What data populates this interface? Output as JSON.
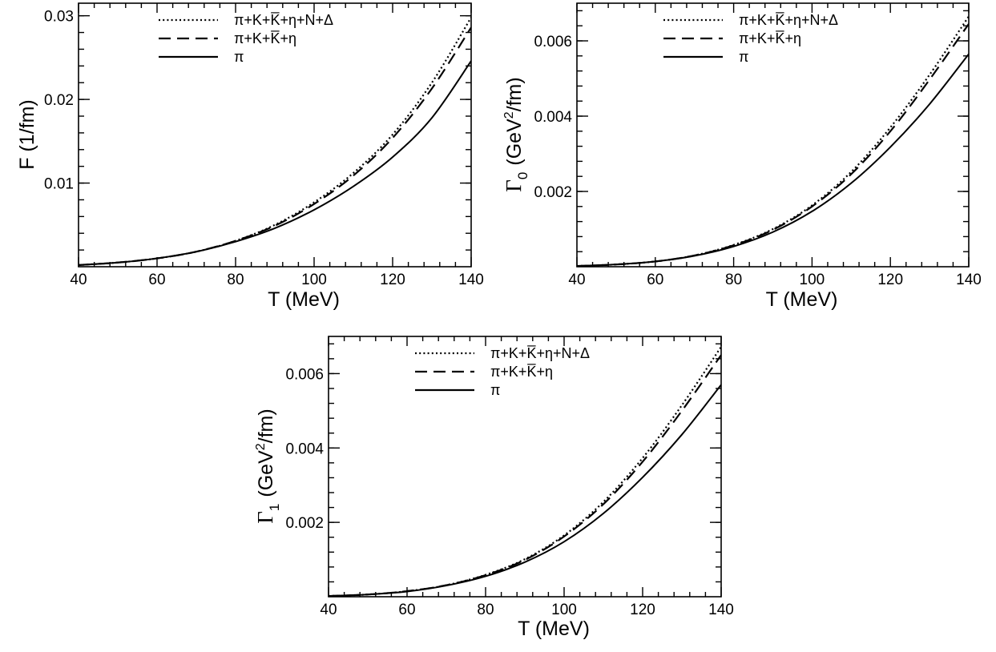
{
  "chart_data": [
    {
      "type": "line",
      "panel": "top-left",
      "xlabel": "T (MeV)",
      "ylabel": "F (1/fm)",
      "xlim": [
        40,
        140
      ],
      "ylim": [
        0,
        0.0315
      ],
      "xticks": [
        40,
        60,
        80,
        100,
        120,
        140
      ],
      "xtick_labels": [
        "40",
        "60",
        "80",
        "100",
        "120",
        "140"
      ],
      "yticks": [
        0.01,
        0.02,
        0.03
      ],
      "ytick_labels": [
        "0.01",
        "0.02",
        "0.03"
      ],
      "legend_position": "top-center",
      "series": [
        {
          "name": "π+K+K̅+η+N+Δ",
          "style": "dotted",
          "x": [
            40,
            50,
            60,
            70,
            80,
            90,
            100,
            110,
            120,
            130,
            140
          ],
          "y": [
            0.0002,
            0.0005,
            0.001,
            0.0018,
            0.0031,
            0.005,
            0.0077,
            0.0112,
            0.0158,
            0.022,
            0.0298
          ]
        },
        {
          "name": "π+K+K̅+η",
          "style": "dashed",
          "x": [
            40,
            50,
            60,
            70,
            80,
            90,
            100,
            110,
            120,
            130,
            140
          ],
          "y": [
            0.0002,
            0.0005,
            0.001,
            0.0018,
            0.0031,
            0.0049,
            0.0075,
            0.0109,
            0.0154,
            0.0213,
            0.0286
          ]
        },
        {
          "name": "π",
          "style": "solid",
          "x": [
            40,
            50,
            60,
            70,
            80,
            90,
            100,
            110,
            120,
            130,
            140
          ],
          "y": [
            0.0002,
            0.0005,
            0.001,
            0.0018,
            0.003,
            0.0046,
            0.0068,
            0.0096,
            0.0131,
            0.0178,
            0.0246
          ]
        }
      ]
    },
    {
      "type": "line",
      "panel": "top-right",
      "xlabel": "T (MeV)",
      "ylabel_symbol": "Γ",
      "ylabel_subscript": "0",
      "ylabel_unit_pre": "(GeV",
      "ylabel_unit_sup": "2",
      "ylabel_unit_post": "/fm)",
      "xlim": [
        40,
        140
      ],
      "ylim": [
        0,
        0.007
      ],
      "xticks": [
        40,
        60,
        80,
        100,
        120,
        140
      ],
      "xtick_labels": [
        "40",
        "60",
        "80",
        "100",
        "120",
        "140"
      ],
      "yticks": [
        0.002,
        0.004,
        0.006
      ],
      "ytick_labels": [
        "0.002",
        "0.004",
        "0.006"
      ],
      "legend_position": "top-center",
      "series": [
        {
          "name": "π+K+K̅+η+N+Δ",
          "style": "dotted",
          "x": [
            40,
            50,
            60,
            70,
            80,
            90,
            100,
            110,
            120,
            130,
            140
          ],
          "y": [
            2e-05,
            6e-05,
            0.00014,
            0.0003,
            0.00058,
            0.001,
            0.00163,
            0.00252,
            0.0037,
            0.0051,
            0.00665
          ]
        },
        {
          "name": "π+K+K̅+η",
          "style": "dashed",
          "x": [
            40,
            50,
            60,
            70,
            80,
            90,
            100,
            110,
            120,
            130,
            140
          ],
          "y": [
            2e-05,
            6e-05,
            0.00014,
            0.0003,
            0.00057,
            0.00098,
            0.0016,
            0.00246,
            0.0036,
            0.00497,
            0.00645
          ]
        },
        {
          "name": "π",
          "style": "solid",
          "x": [
            40,
            50,
            60,
            70,
            80,
            90,
            100,
            110,
            120,
            130,
            140
          ],
          "y": [
            2e-05,
            6e-05,
            0.00014,
            0.00029,
            0.00054,
            0.00092,
            0.00147,
            0.00222,
            0.00318,
            0.00432,
            0.00565
          ]
        }
      ]
    },
    {
      "type": "line",
      "panel": "bottom-center",
      "xlabel": "T (MeV)",
      "ylabel_symbol": "Γ",
      "ylabel_subscript": "1",
      "ylabel_unit_pre": "(GeV",
      "ylabel_unit_sup": "2",
      "ylabel_unit_post": "/fm)",
      "xlim": [
        40,
        140
      ],
      "ylim": [
        0,
        0.007
      ],
      "xticks": [
        40,
        60,
        80,
        100,
        120,
        140
      ],
      "xtick_labels": [
        "40",
        "60",
        "80",
        "100",
        "120",
        "140"
      ],
      "yticks": [
        0.002,
        0.004,
        0.006
      ],
      "ytick_labels": [
        "0.002",
        "0.004",
        "0.006"
      ],
      "legend_position": "top-center",
      "series": [
        {
          "name": "π+K+K̅+η+N+Δ",
          "style": "dotted",
          "x": [
            40,
            50,
            60,
            70,
            80,
            90,
            100,
            110,
            120,
            130,
            140
          ],
          "y": [
            2e-05,
            6e-05,
            0.00015,
            0.00031,
            0.00059,
            0.00101,
            0.00165,
            0.00255,
            0.00373,
            0.00515,
            0.00672
          ]
        },
        {
          "name": "π+K+K̅+η",
          "style": "dashed",
          "x": [
            40,
            50,
            60,
            70,
            80,
            90,
            100,
            110,
            120,
            130,
            140
          ],
          "y": [
            2e-05,
            6e-05,
            0.00015,
            0.00031,
            0.00058,
            0.00099,
            0.00162,
            0.00249,
            0.00363,
            0.005,
            0.0065
          ]
        },
        {
          "name": "π",
          "style": "solid",
          "x": [
            40,
            50,
            60,
            70,
            80,
            90,
            100,
            110,
            120,
            130,
            140
          ],
          "y": [
            2e-05,
            6e-05,
            0.00014,
            0.0003,
            0.00055,
            0.00093,
            0.00148,
            0.00224,
            0.00321,
            0.00436,
            0.0057
          ]
        }
      ]
    }
  ]
}
